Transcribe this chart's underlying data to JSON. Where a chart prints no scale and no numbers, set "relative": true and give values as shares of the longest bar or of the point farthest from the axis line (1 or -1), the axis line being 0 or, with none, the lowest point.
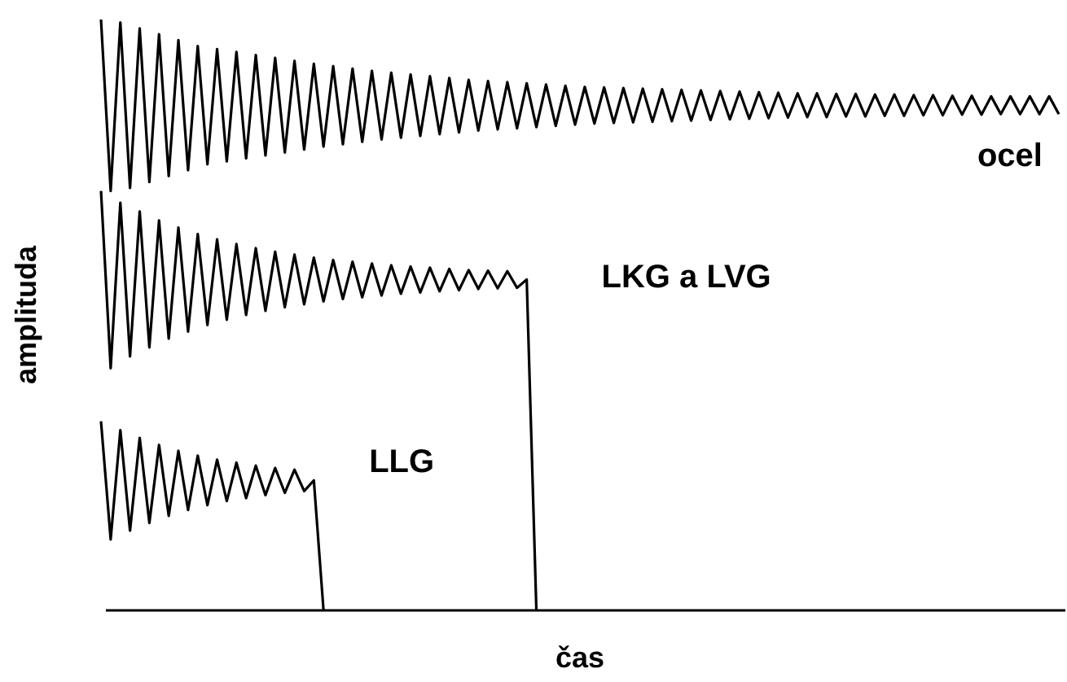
{
  "chart_data": {
    "type": "line",
    "relative": true,
    "xlabel": "čas",
    "ylabel": "amplituda",
    "marker": "none",
    "line_style": "solid",
    "categories": [
      null,
      null,
      null,
      null,
      null,
      null,
      null,
      null,
      null,
      null,
      null,
      null,
      null,
      null,
      null,
      null,
      null,
      null,
      null,
      null,
      null,
      null,
      null,
      null,
      null,
      null,
      null,
      null,
      null,
      null,
      null,
      null,
      null,
      null,
      null,
      null,
      null,
      null,
      null,
      null,
      null,
      null,
      null,
      null,
      null,
      null,
      null,
      null,
      null,
      null,
      null,
      null,
      null,
      null,
      null,
      null,
      null,
      null,
      null,
      null,
      null,
      null,
      null,
      null,
      null,
      null,
      null,
      null,
      null,
      null,
      null,
      null,
      null,
      null,
      null,
      null,
      null,
      null,
      null,
      null,
      null,
      null,
      null,
      null,
      null,
      null,
      null,
      null,
      null,
      null,
      null,
      null,
      null,
      null,
      null,
      null,
      null,
      null,
      null,
      null
    ],
    "series": [
      {
        "name": "ocel",
        "color": "#000000",
        "values": [
          1.0,
          0.71,
          0.995,
          0.715,
          0.985,
          0.725,
          0.975,
          0.735,
          0.965,
          0.745,
          0.955,
          0.755,
          0.95,
          0.76,
          0.945,
          0.765,
          0.94,
          0.77,
          0.935,
          0.775,
          0.93,
          0.78,
          0.925,
          0.785,
          0.921,
          0.789,
          0.917,
          0.793,
          0.913,
          0.797,
          0.91,
          0.8,
          0.907,
          0.803,
          0.904,
          0.806,
          0.901,
          0.809,
          0.898,
          0.812,
          0.896,
          0.814,
          0.894,
          0.816,
          0.892,
          0.818,
          0.89,
          0.82,
          0.888,
          0.822,
          0.886,
          0.824,
          0.885,
          0.825,
          0.884,
          0.826,
          0.883,
          0.827,
          0.882,
          0.828,
          0.881,
          0.829,
          0.88,
          0.83,
          0.879,
          0.831,
          0.878,
          0.832,
          0.877,
          0.833,
          0.876,
          0.834,
          0.875,
          0.835,
          0.875,
          0.835,
          0.874,
          0.836,
          0.874,
          0.836,
          0.873,
          0.837,
          0.873,
          0.837,
          0.872,
          0.838,
          0.872,
          0.838,
          0.871,
          0.839,
          0.871,
          0.839,
          0.87,
          0.84,
          0.87,
          0.84,
          0.87,
          0.84,
          0.87,
          0.84
        ]
      },
      {
        "name": "LKG a LVG",
        "color": "#000000",
        "values": [
          0.71,
          0.41,
          0.69,
          0.43,
          0.675,
          0.445,
          0.66,
          0.46,
          0.648,
          0.472,
          0.637,
          0.483,
          0.628,
          0.492,
          0.62,
          0.5,
          0.613,
          0.507,
          0.607,
          0.513,
          0.602,
          0.518,
          0.597,
          0.523,
          0.593,
          0.527,
          0.59,
          0.53,
          0.587,
          0.533,
          0.584,
          0.536,
          0.582,
          0.538,
          0.58,
          0.54,
          0.578,
          0.542,
          0.576,
          0.544,
          0.575,
          0.545,
          0.574,
          0.546,
          0.56,
          0,
          null,
          null,
          null,
          null,
          null,
          null,
          null,
          null,
          null,
          null,
          null,
          null,
          null,
          null,
          null,
          null,
          null,
          null,
          null,
          null,
          null,
          null,
          null,
          null,
          null,
          null,
          null,
          null,
          null,
          null,
          null,
          null,
          null,
          null,
          null,
          null,
          null,
          null,
          null,
          null,
          null,
          null,
          null,
          null,
          null,
          null,
          null,
          null,
          null,
          null,
          null,
          null,
          null,
          null
        ]
      },
      {
        "name": "LLG",
        "color": "#000000",
        "values": [
          0.32,
          0.12,
          0.305,
          0.135,
          0.292,
          0.148,
          0.28,
          0.16,
          0.27,
          0.17,
          0.262,
          0.178,
          0.255,
          0.185,
          0.25,
          0.19,
          0.245,
          0.195,
          0.241,
          0.199,
          0.238,
          0.202,
          0.22,
          0,
          null,
          null,
          null,
          null,
          null,
          null,
          null,
          null,
          null,
          null,
          null,
          null,
          null,
          null,
          null,
          null,
          null,
          null,
          null,
          null,
          null,
          null,
          null,
          null,
          null,
          null,
          null,
          null,
          null,
          null,
          null,
          null,
          null,
          null,
          null,
          null,
          null,
          null,
          null,
          null,
          null,
          null,
          null,
          null,
          null,
          null,
          null,
          null,
          null,
          null,
          null,
          null,
          null,
          null,
          null,
          null,
          null,
          null,
          null,
          null,
          null,
          null,
          null,
          null,
          null,
          null,
          null,
          null,
          null,
          null,
          null,
          null,
          null,
          null,
          null,
          null
        ]
      }
    ]
  }
}
